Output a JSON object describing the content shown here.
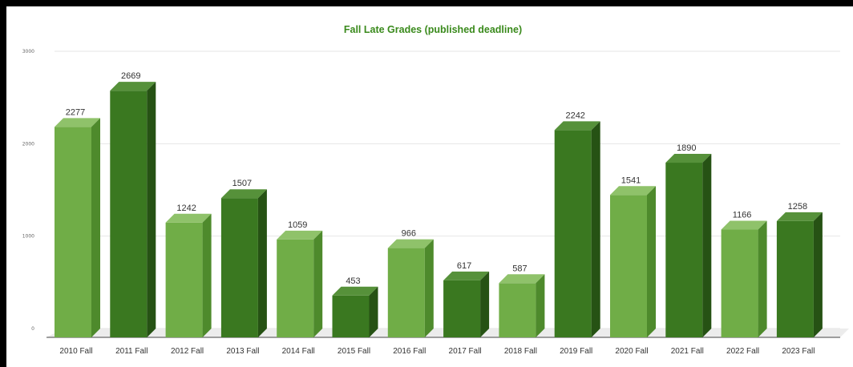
{
  "chart_data": {
    "type": "bar",
    "title": "Fall Late Grades (published deadline)",
    "xlabel": "",
    "ylabel": "",
    "ylim": [
      0,
      3000
    ],
    "yticks": [
      0,
      1000,
      2000,
      3000
    ],
    "grid": true,
    "legend": "none",
    "categories": [
      "2010 Fall",
      "2011 Fall",
      "2012 Fall",
      "2013 Fall",
      "2014 Fall",
      "2015 Fall",
      "2016 Fall",
      "2017 Fall",
      "2018 Fall",
      "2019 Fall",
      "2020 Fall",
      "2021 Fall",
      "2022 Fall",
      "2023 Fall"
    ],
    "values": [
      2277,
      2669,
      1242,
      1507,
      1059,
      453,
      966,
      617,
      587,
      2242,
      1541,
      1890,
      1166,
      1258
    ],
    "data_labels": [
      "2277",
      "2669",
      "1242",
      "1507",
      "1059",
      "453",
      "966",
      "617",
      "587",
      "2242",
      "1541",
      "1890",
      "1166",
      "1258"
    ],
    "colors": {
      "light": {
        "front": "#70ad47",
        "top": "#8fc26a",
        "side": "#4e8a2c"
      },
      "dark": {
        "front": "#3a7820",
        "top": "#56913a",
        "side": "#265214"
      },
      "title": "#3a8a1c"
    },
    "bar_shades": [
      "light",
      "dark",
      "light",
      "dark",
      "light",
      "dark",
      "light",
      "dark",
      "light",
      "dark",
      "light",
      "dark",
      "light",
      "dark"
    ]
  }
}
